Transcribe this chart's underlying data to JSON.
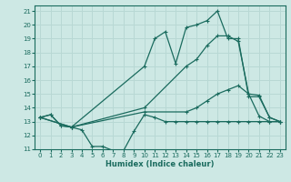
{
  "xlabel": "Humidex (Indice chaleur)",
  "bg_color": "#cde8e4",
  "line_color": "#1a6b5e",
  "grid_color": "#b8d8d4",
  "xlim": [
    -0.5,
    23.5
  ],
  "ylim": [
    11,
    21.4
  ],
  "xticks": [
    0,
    1,
    2,
    3,
    4,
    5,
    6,
    7,
    8,
    9,
    10,
    11,
    12,
    13,
    14,
    15,
    16,
    17,
    18,
    19,
    20,
    21,
    22,
    23
  ],
  "yticks": [
    11,
    12,
    13,
    14,
    15,
    16,
    17,
    18,
    19,
    20,
    21
  ],
  "series": [
    {
      "x": [
        0,
        1,
        2,
        3,
        4,
        5,
        6,
        7,
        8,
        9,
        10,
        11,
        12,
        13,
        14,
        15,
        16,
        17,
        18,
        19,
        20,
        21,
        22,
        23
      ],
      "y": [
        13.3,
        13.5,
        12.7,
        12.6,
        12.4,
        11.2,
        11.2,
        10.9,
        10.9,
        12.3,
        13.5,
        13.3,
        13.0,
        13.0,
        13.0,
        13.0,
        13.0,
        13.0,
        13.0,
        13.0,
        13.0,
        13.0,
        13.0,
        13.0
      ]
    },
    {
      "x": [
        0,
        1,
        2,
        3,
        10,
        11,
        12,
        13,
        14,
        15,
        16,
        17,
        18,
        19,
        20,
        21,
        22,
        23
      ],
      "y": [
        13.3,
        13.5,
        12.7,
        12.6,
        17.0,
        19.0,
        19.5,
        17.2,
        19.8,
        20.0,
        20.3,
        21.0,
        19.0,
        19.0,
        14.8,
        14.8,
        13.3,
        13.0
      ]
    },
    {
      "x": [
        0,
        3,
        10,
        14,
        15,
        16,
        17,
        18,
        19,
        20,
        21,
        22,
        23
      ],
      "y": [
        13.3,
        12.6,
        13.7,
        13.7,
        14.0,
        14.5,
        15.0,
        15.3,
        15.6,
        15.0,
        13.4,
        13.0,
        13.0
      ]
    },
    {
      "x": [
        0,
        3,
        10,
        14,
        15,
        16,
        17,
        18,
        19,
        20,
        21,
        22,
        23
      ],
      "y": [
        13.3,
        12.6,
        14.0,
        17.0,
        17.5,
        18.5,
        19.2,
        19.2,
        18.8,
        15.0,
        14.9,
        13.3,
        13.0
      ]
    }
  ]
}
